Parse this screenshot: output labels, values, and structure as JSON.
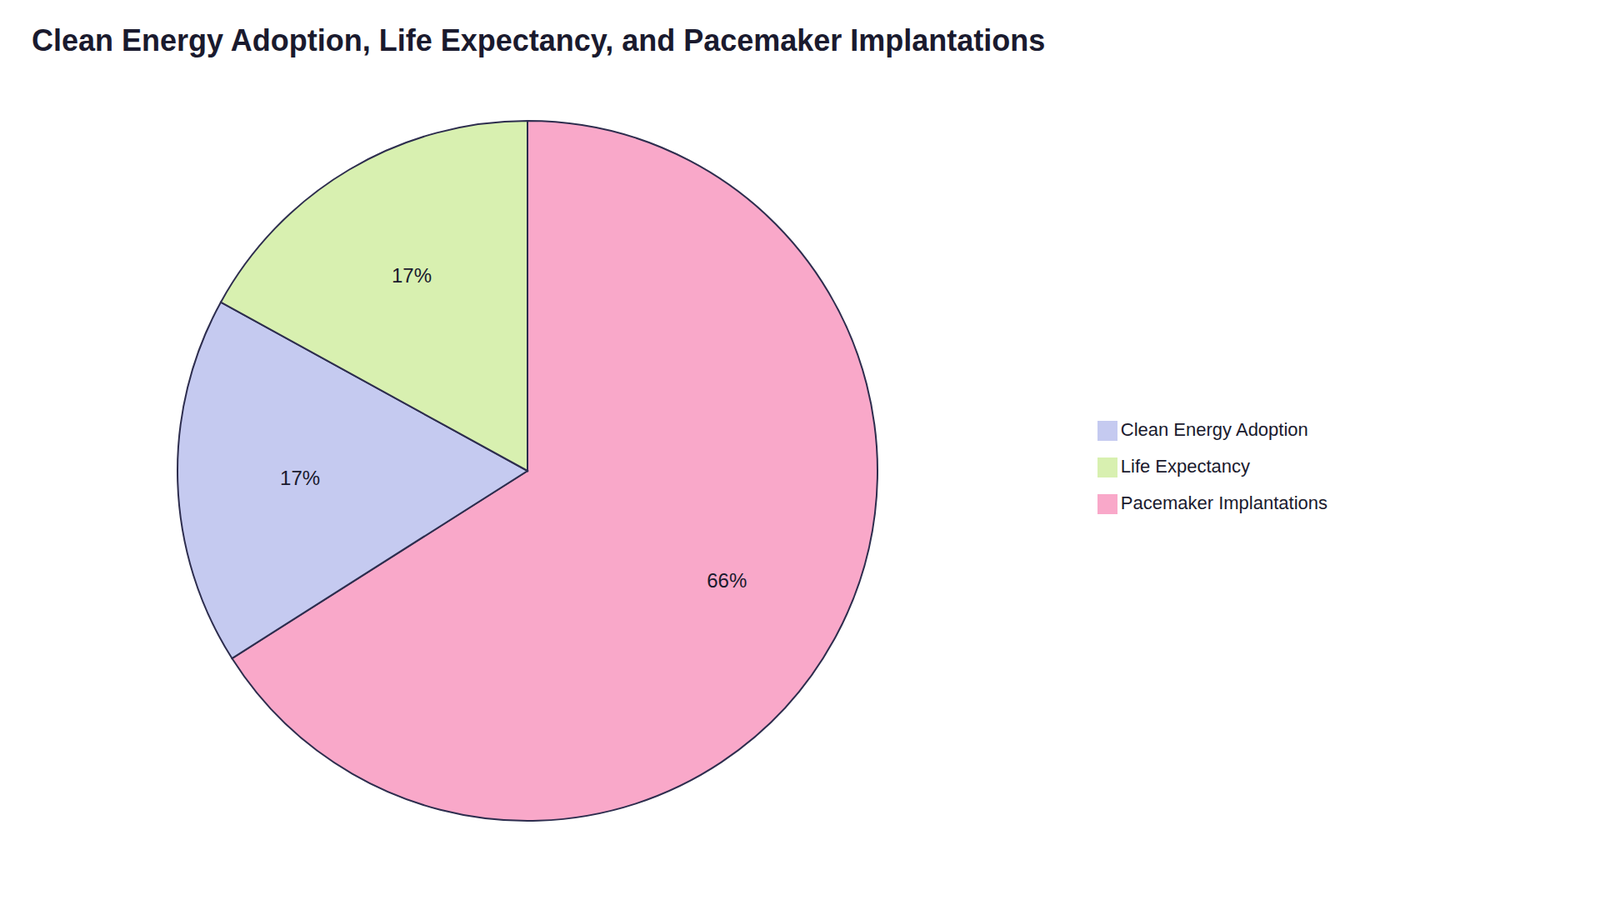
{
  "chart_data": {
    "type": "pie",
    "title": "Clean Energy Adoption, Life Expectancy, and Pacemaker Implantations",
    "categories": [
      "Pacemaker Implantations",
      "Clean Energy Adoption",
      "Life Expectancy"
    ],
    "values": [
      66,
      17,
      17
    ],
    "value_labels": [
      "66%",
      "17%",
      "17%"
    ],
    "colors": [
      "#F9A8C9",
      "#C5CAF0",
      "#D8F0B0"
    ],
    "data_labels": true,
    "legend": "right"
  }
}
